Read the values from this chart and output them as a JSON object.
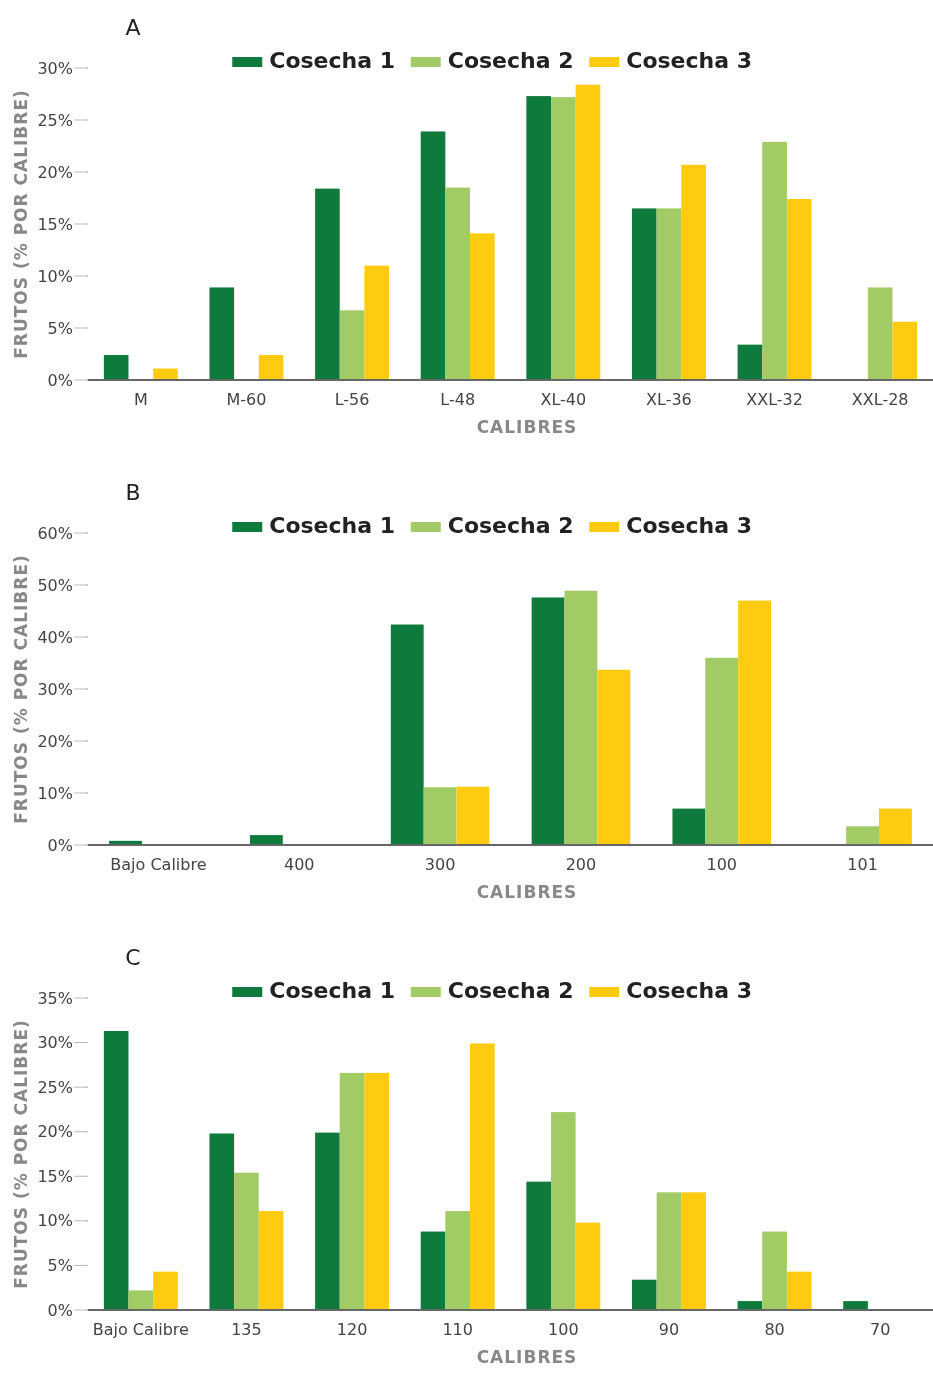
{
  "chart_data": [
    {
      "type": "bar",
      "title": "A",
      "xlabel": "CALIBRES",
      "ylabel": "FRUTOS (% POR CALIBRE)",
      "legend": "top",
      "categories": [
        "M",
        "M-60",
        "L-56",
        "L-48",
        "XL-40",
        "XL-36",
        "XXL-32",
        "XXL-28"
      ],
      "ylim": [
        0,
        30
      ],
      "yticks": [
        {
          "value": 0,
          "label": "0%"
        },
        {
          "value": 5,
          "label": "5%"
        },
        {
          "value": 10,
          "label": "10%"
        },
        {
          "value": 15,
          "label": "15%"
        },
        {
          "value": 20,
          "label": "20%"
        },
        {
          "value": 25,
          "label": "25%"
        },
        {
          "value": 30,
          "label": "30%"
        }
      ],
      "series": [
        {
          "name": "Cosecha 1",
          "color": "#0e7a3c",
          "values": [
            2.4,
            8.9,
            18.4,
            23.9,
            27.3,
            16.5,
            3.4,
            null
          ]
        },
        {
          "name": "Cosecha 2",
          "color": "#a2cb66",
          "values": [
            null,
            null,
            6.7,
            18.5,
            27.2,
            16.5,
            22.9,
            8.9
          ]
        },
        {
          "name": "Cosecha 3",
          "color": "#fecb10",
          "values": [
            1.1,
            2.4,
            11.0,
            14.1,
            28.4,
            20.7,
            17.4,
            5.6
          ]
        }
      ]
    },
    {
      "type": "bar",
      "title": "B",
      "xlabel": "CALIBRES",
      "ylabel": "FRUTOS (% POR CALIBRE)",
      "legend": "top",
      "categories": [
        "Bajo Calibre",
        "400",
        "300",
        "200",
        "100",
        "101"
      ],
      "ylim": [
        0,
        60
      ],
      "yticks": [
        {
          "value": 0,
          "label": "0%"
        },
        {
          "value": 10,
          "label": "10%"
        },
        {
          "value": 20,
          "label": "20%"
        },
        {
          "value": 30,
          "label": "30%"
        },
        {
          "value": 40,
          "label": "40%"
        },
        {
          "value": 50,
          "label": "50%"
        },
        {
          "value": 60,
          "label": "60%"
        }
      ],
      "series": [
        {
          "name": "Cosecha 1",
          "color": "#0e7a3c",
          "values": [
            0.8,
            1.9,
            42.4,
            47.6,
            7.0,
            null
          ]
        },
        {
          "name": "Cosecha 2",
          "color": "#a2cb66",
          "values": [
            null,
            null,
            11.1,
            48.9,
            36.0,
            3.6
          ]
        },
        {
          "name": "Cosecha 3",
          "color": "#fecb10",
          "values": [
            null,
            null,
            11.2,
            33.7,
            47.0,
            7.0
          ]
        }
      ]
    },
    {
      "type": "bar",
      "title": "C",
      "xlabel": "CALIBRES",
      "ylabel": "FRUTOS (% POR CALIBRE)",
      "legend": "top",
      "categories": [
        "Bajo Calibre",
        "135",
        "120",
        "110",
        "100",
        "90",
        "80",
        "70"
      ],
      "ylim": [
        0,
        35
      ],
      "yticks": [
        {
          "value": 0,
          "label": "0%"
        },
        {
          "value": 5,
          "label": "5%"
        },
        {
          "value": 10,
          "label": "10%"
        },
        {
          "value": 15,
          "label": "15%"
        },
        {
          "value": 20,
          "label": "20%"
        },
        {
          "value": 25,
          "label": "25%"
        },
        {
          "value": 30,
          "label": "30%"
        },
        {
          "value": 35,
          "label": "35%"
        }
      ],
      "series": [
        {
          "name": "Cosecha 1",
          "color": "#0e7a3c",
          "values": [
            31.3,
            19.8,
            19.9,
            8.8,
            14.4,
            3.4,
            1.0,
            1.0
          ]
        },
        {
          "name": "Cosecha 2",
          "color": "#a2cb66",
          "values": [
            2.2,
            15.4,
            26.6,
            11.1,
            22.2,
            13.2,
            8.8,
            null
          ]
        },
        {
          "name": "Cosecha 3",
          "color": "#fecb10",
          "values": [
            4.3,
            11.1,
            26.6,
            29.9,
            9.8,
            13.2,
            4.3,
            null
          ]
        }
      ]
    }
  ]
}
